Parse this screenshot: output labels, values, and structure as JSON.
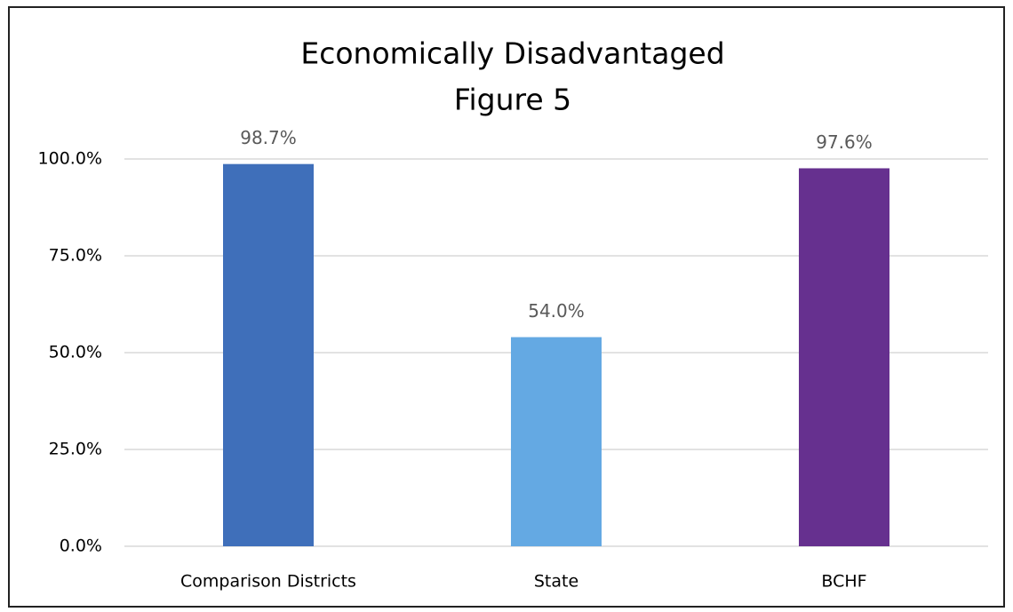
{
  "chart_data": {
    "type": "bar",
    "title": "Economically Disadvantaged",
    "subtitle": "Figure 5",
    "categories": [
      "Comparison Districts",
      "State",
      "BCHF"
    ],
    "values": [
      98.7,
      54.0,
      97.6
    ],
    "value_labels": [
      "98.7%",
      "54.0%",
      "97.6%"
    ],
    "colors": [
      "#3f6fba",
      "#64a9e3",
      "#66308f"
    ],
    "ylim": [
      0,
      100
    ],
    "yticks": [
      {
        "value": 0,
        "label": "0.0%"
      },
      {
        "value": 25,
        "label": "25.0%"
      },
      {
        "value": 50,
        "label": "50.0%"
      },
      {
        "value": 75,
        "label": "75.0%"
      },
      {
        "value": 100,
        "label": "100.0%"
      }
    ],
    "grid": true
  }
}
